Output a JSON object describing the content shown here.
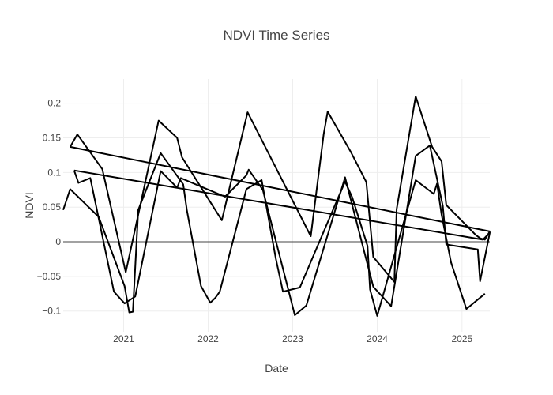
{
  "chart_data": {
    "type": "line",
    "title": "NDVI Time Series",
    "xlabel": "Date",
    "ylabel": "NDVI",
    "xlim": [
      "2020-04-15",
      "2025-05-01"
    ],
    "ylim": [
      -0.13,
      0.235
    ],
    "x_ticks": [
      {
        "date": "2021-01-01",
        "label": "2021"
      },
      {
        "date": "2022-01-01",
        "label": "2022"
      },
      {
        "date": "2023-01-01",
        "label": "2023"
      },
      {
        "date": "2024-01-01",
        "label": "2024"
      },
      {
        "date": "2025-01-01",
        "label": "2025"
      }
    ],
    "y_ticks": [
      -0.1,
      -0.05,
      0,
      0.05,
      0.1,
      0.15,
      0.2
    ],
    "y_tick_labels": [
      "−0.1",
      "−0.05",
      "0",
      "0.05",
      "0.1",
      "0.15",
      "0.2"
    ],
    "grid": true,
    "line_color": "#000000",
    "series": [
      {
        "points": [
          [
            "2020-05-15",
            0.137
          ],
          [
            "2020-06-15",
            0.155
          ],
          [
            "2020-10-01",
            0.105
          ],
          [
            "2021-01-10",
            -0.044
          ],
          [
            "2021-06-01",
            0.175
          ],
          [
            "2021-08-20",
            0.15
          ],
          [
            "2021-09-10",
            0.122
          ],
          [
            "2022-03-01",
            0.031
          ],
          [
            "2022-06-20",
            0.187
          ],
          [
            "2023-03-20",
            0.008
          ],
          [
            "2023-05-15",
            0.156
          ],
          [
            "2023-06-01",
            0.188
          ],
          [
            "2023-09-10",
            0.129
          ],
          [
            "2023-11-15",
            0.086
          ],
          [
            "2023-12-15",
            -0.022
          ],
          [
            "2024-03-15",
            -0.058
          ],
          [
            "2024-03-25",
            0.047
          ],
          [
            "2024-06-15",
            0.21
          ],
          [
            "2024-08-25",
            0.137
          ],
          [
            "2024-10-05",
            0.116
          ],
          [
            "2024-10-25",
            0.053
          ],
          [
            "2025-03-01",
            0.01
          ],
          [
            "2025-03-20",
            0.005
          ],
          [
            "2025-04-10",
            0.003
          ],
          [
            "2025-05-01",
            0.015
          ],
          [
            "2020-05-15",
            0.137
          ]
        ]
      },
      {
        "points": [
          [
            "2020-06-01",
            0.103
          ],
          [
            "2020-06-20",
            0.085
          ],
          [
            "2020-08-10",
            0.092
          ],
          [
            "2020-11-20",
            -0.072
          ],
          [
            "2021-01-05",
            -0.089
          ],
          [
            "2021-02-20",
            -0.079
          ],
          [
            "2021-06-10",
            0.102
          ],
          [
            "2021-08-20",
            0.078
          ],
          [
            "2021-09-05",
            0.092
          ],
          [
            "2022-03-15",
            0.065
          ],
          [
            "2022-06-15",
            0.096
          ],
          [
            "2022-06-25",
            0.104
          ],
          [
            "2022-08-25",
            0.075
          ],
          [
            "2023-01-10",
            -0.106
          ],
          [
            "2023-03-01",
            -0.092
          ],
          [
            "2023-08-15",
            0.093
          ],
          [
            "2023-12-15",
            -0.065
          ],
          [
            "2024-03-01",
            -0.093
          ],
          [
            "2024-06-15",
            0.124
          ],
          [
            "2024-08-15",
            0.139
          ],
          [
            "2024-10-10",
            0.052
          ],
          [
            "2024-10-25",
            -0.004
          ],
          [
            "2025-03-10",
            -0.011
          ],
          [
            "2025-03-20",
            -0.057
          ],
          [
            "2025-05-01",
            0.013
          ],
          [
            "2025-04-01",
            0.003
          ],
          [
            "2020-06-01",
            0.103
          ]
        ]
      },
      {
        "points": [
          [
            "2020-04-15",
            0.046
          ],
          [
            "2020-05-15",
            0.076
          ],
          [
            "2020-09-15",
            0.036
          ],
          [
            "2021-01-05",
            -0.064
          ],
          [
            "2021-01-25",
            -0.102
          ],
          [
            "2021-02-10",
            -0.101
          ],
          [
            "2021-03-05",
            0.046
          ],
          [
            "2021-06-10",
            0.128
          ],
          [
            "2021-09-15",
            0.083
          ],
          [
            "2021-10-01",
            0.046
          ],
          [
            "2021-12-01",
            -0.064
          ],
          [
            "2022-01-10",
            -0.088
          ],
          [
            "2022-02-01",
            -0.081
          ],
          [
            "2022-02-20",
            -0.072
          ],
          [
            "2022-06-15",
            0.076
          ],
          [
            "2022-08-20",
            0.089
          ],
          [
            "2022-10-20",
            -0.024
          ],
          [
            "2022-11-20",
            -0.072
          ],
          [
            "2023-02-01",
            -0.066
          ],
          [
            "2023-08-15",
            0.087
          ],
          [
            "2023-09-15",
            0.064
          ],
          [
            "2023-11-20",
            -0.006
          ],
          [
            "2023-12-01",
            -0.069
          ],
          [
            "2024-01-01",
            -0.107
          ],
          [
            "2024-06-15",
            0.089
          ],
          [
            "2024-09-01",
            0.069
          ],
          [
            "2024-09-15",
            0.084
          ],
          [
            "2024-10-05",
            0.039
          ],
          [
            "2024-11-15",
            -0.03
          ],
          [
            "2025-01-20",
            -0.097
          ],
          [
            "2025-04-10",
            -0.075
          ]
        ]
      }
    ]
  }
}
